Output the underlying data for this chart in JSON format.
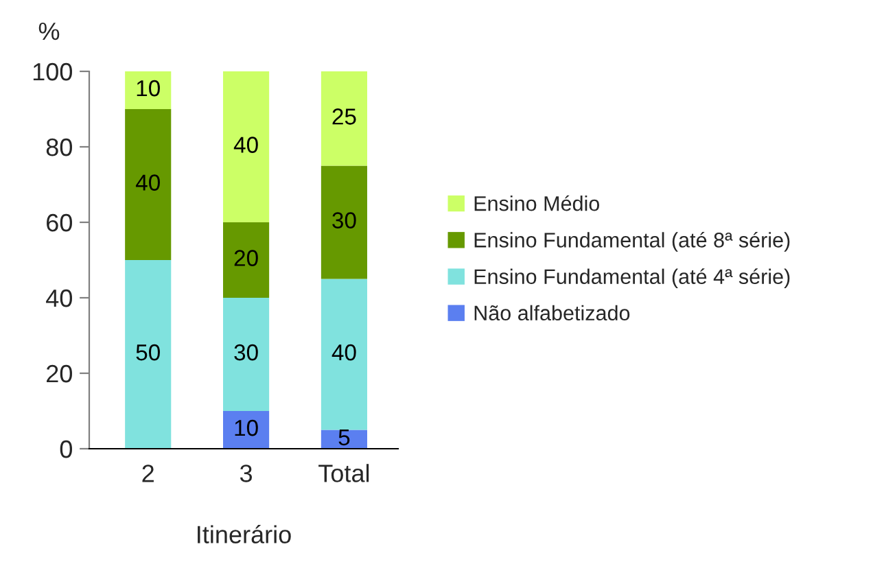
{
  "chart_data": {
    "type": "bar",
    "stacked": true,
    "ylabel": "%",
    "xlabel": "Itinerário",
    "categories": [
      "2",
      "3",
      "Total"
    ],
    "series": [
      {
        "name": "Não alfabetizado",
        "color": "#5b7ff0",
        "values": [
          0,
          10,
          5
        ],
        "value_labels": [
          null,
          "10",
          "5"
        ]
      },
      {
        "name": "Ensino Fundamental (até 4ª série)",
        "color": "#80e2de",
        "values": [
          50,
          30,
          40
        ],
        "value_labels": [
          "50",
          "30",
          "40"
        ]
      },
      {
        "name": "Ensino Fundamental (até 8ª série)",
        "color": "#669900",
        "values": [
          40,
          20,
          30
        ],
        "value_labels": [
          "40",
          "20",
          "30"
        ]
      },
      {
        "name": "Ensino Médio",
        "color": "#ccff66",
        "values": [
          10,
          40,
          25
        ],
        "value_labels": [
          "10",
          "40",
          "25"
        ]
      }
    ],
    "ylim": [
      0,
      100
    ],
    "yticks": [
      0,
      20,
      40,
      60,
      80,
      100
    ],
    "grid": false,
    "legend": "right"
  }
}
